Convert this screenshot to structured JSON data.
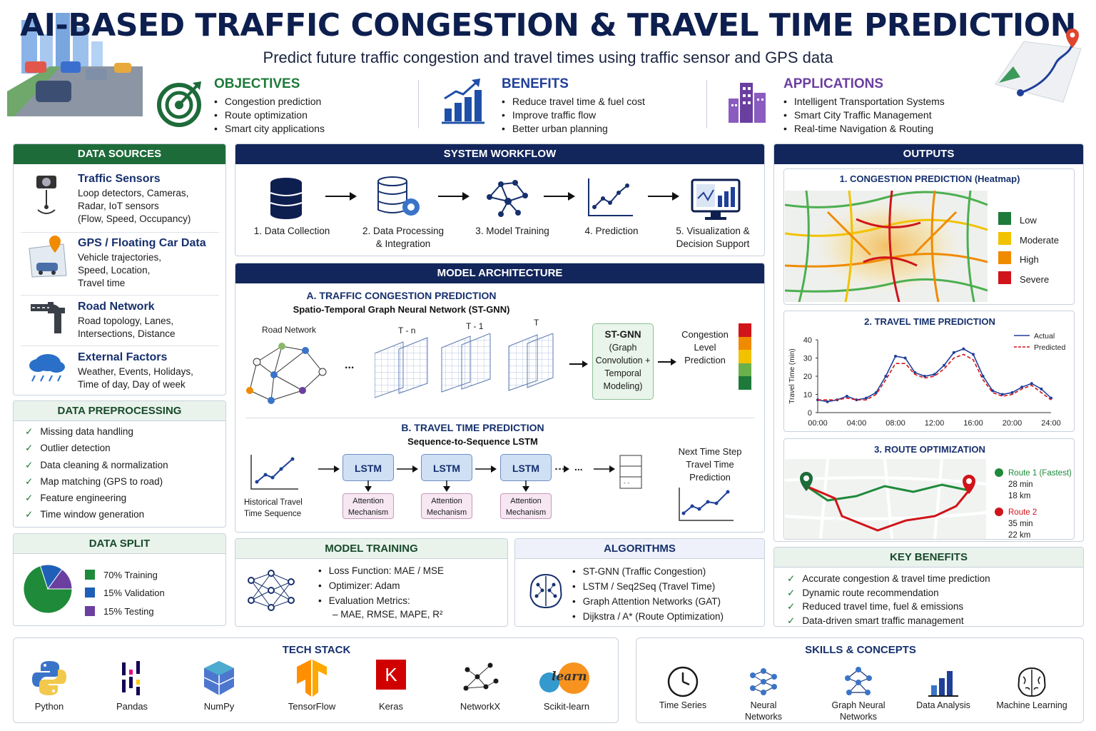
{
  "header": {
    "title": "AI-BASED TRAFFIC CONGESTION & TRAVEL TIME PREDICTION",
    "subtitle": "Predict future traffic congestion and travel times using traffic sensor and GPS data"
  },
  "objectives": {
    "heading": "OBJECTIVES",
    "items": [
      "Congestion prediction",
      "Route optimization",
      "Smart city applications"
    ],
    "color": "#1e7a3a"
  },
  "benefits": {
    "heading": "BENEFITS",
    "items": [
      "Reduce travel time & fuel cost",
      "Improve traffic flow",
      "Better urban planning"
    ],
    "color": "#1f3f99"
  },
  "applications": {
    "heading": "APPLICATIONS",
    "items": [
      "Intelligent Transportation Systems",
      "Smart City Traffic Management",
      "Real-time Navigation & Routing"
    ],
    "color": "#6b3fa0"
  },
  "data_sources": {
    "heading": "DATA SOURCES",
    "items": [
      {
        "title": "Traffic Sensors",
        "lines": [
          "Loop detectors, Cameras,",
          "Radar, IoT sensors",
          "(Flow, Speed, Occupancy)"
        ],
        "icon": "camera-icon"
      },
      {
        "title": "GPS / Floating Car Data",
        "lines": [
          "Vehicle trajectories,",
          "Speed, Location,",
          "Travel time"
        ],
        "icon": "gps-car-icon"
      },
      {
        "title": "Road Network",
        "lines": [
          "Road topology, Lanes,",
          "Intersections, Distance"
        ],
        "icon": "road-icon"
      },
      {
        "title": "External Factors",
        "lines": [
          "Weather, Events, Holidays,",
          "Time of day, Day of week"
        ],
        "icon": "weather-icon"
      }
    ]
  },
  "preprocessing": {
    "heading": "DATA PREPROCESSING",
    "items": [
      "Missing data handling",
      "Outlier detection",
      "Data cleaning & normalization",
      "Map matching (GPS to road)",
      "Feature engineering",
      "Time window generation"
    ]
  },
  "data_split": {
    "heading": "DATA SPLIT",
    "items": [
      {
        "label": "70% Training",
        "value": 70,
        "color": "#1e8a3a"
      },
      {
        "label": "15% Validation",
        "value": 15,
        "color": "#1f5fb8"
      },
      {
        "label": "15% Testing",
        "value": 15,
        "color": "#6b3fa0"
      }
    ]
  },
  "workflow": {
    "heading": "SYSTEM WORKFLOW",
    "steps": [
      {
        "label1": "1. Data Collection",
        "label2": ""
      },
      {
        "label1": "2. Data Processing",
        "label2": "& Integration"
      },
      {
        "label1": "3. Model Training",
        "label2": ""
      },
      {
        "label1": "4. Prediction",
        "label2": ""
      },
      {
        "label1": "5. Visualization &",
        "label2": "Decision Support"
      }
    ]
  },
  "architecture": {
    "heading": "MODEL ARCHITECTURE",
    "a_title": "A. TRAFFIC CONGESTION PREDICTION",
    "a_sub": "Spatio-Temporal Graph Neural Network (ST-GNN)",
    "road_network": "Road Network",
    "t_labels": [
      "T - n",
      "T - 1",
      "T"
    ],
    "dots": "...",
    "stgnn": [
      "ST-GNN",
      "(Graph",
      "Convolution +",
      "Temporal",
      "Modeling)"
    ],
    "congestion_out": [
      "Congestion",
      "Level",
      "Prediction"
    ],
    "b_title": "B. TRAVEL TIME PREDICTION",
    "b_sub": "Sequence-to-Sequence LSTM",
    "historical": [
      "Historical Travel",
      "Time Sequence"
    ],
    "lstm": "LSTM",
    "attention": [
      "Attention",
      "Mechanism"
    ],
    "next_step": [
      "Next Time Step",
      "Travel Time",
      "Prediction"
    ]
  },
  "training": {
    "heading": "MODEL TRAINING",
    "items": [
      "Loss Function: MAE / MSE",
      "Optimizer: Adam",
      "Evaluation Metrics:"
    ],
    "sub": "– MAE, RMSE, MAPE, R²"
  },
  "algorithms": {
    "heading": "ALGORITHMS",
    "items": [
      "ST-GNN (Traffic Congestion)",
      "LSTM / Seq2Seq (Travel Time)",
      "Graph Attention Networks (GAT)",
      "Dijkstra / A* (Route Optimization)"
    ]
  },
  "outputs": {
    "heading": "OUTPUTS",
    "congestion": {
      "title": "1. CONGESTION PREDICTION (Heatmap)",
      "legend": [
        {
          "label": "Low",
          "color": "#1e7a3a"
        },
        {
          "label": "Moderate",
          "color": "#f2c200"
        },
        {
          "label": "High",
          "color": "#f08a00"
        },
        {
          "label": "Severe",
          "color": "#d0141a"
        }
      ]
    },
    "travel_time": {
      "title": "2. TRAVEL TIME PREDICTION"
    },
    "route": {
      "title": "3. ROUTE OPTIMIZATION",
      "routes": [
        {
          "name": "Route 1 (Fastest)",
          "time": "28 min",
          "dist": "18 km",
          "color": "#1e8a3a"
        },
        {
          "name": "Route 2",
          "time": "35 min",
          "dist": "22 km",
          "color": "#d0141a"
        }
      ]
    }
  },
  "key_benefits": {
    "heading": "KEY BENEFITS",
    "items": [
      "Accurate congestion & travel time prediction",
      "Dynamic route recommendation",
      "Reduced travel time, fuel & emissions",
      "Data-driven smart traffic management"
    ]
  },
  "tech_stack": {
    "heading": "TECH STACK",
    "items": [
      {
        "label": "Python",
        "icon": "python-icon"
      },
      {
        "label": "Pandas",
        "icon": "pandas-icon"
      },
      {
        "label": "NumPy",
        "icon": "numpy-icon"
      },
      {
        "label": "TensorFlow",
        "icon": "tensorflow-icon"
      },
      {
        "label": "Keras",
        "icon": "keras-icon"
      },
      {
        "label": "NetworkX",
        "icon": "networkx-icon"
      },
      {
        "label": "Scikit-learn",
        "icon": "scikit-learn-icon"
      }
    ],
    "keras_letter": "K",
    "sklearn_text": "learn"
  },
  "skills": {
    "heading": "SKILLS & CONCEPTS",
    "items": [
      {
        "line1": "Time Series",
        "line2": "",
        "icon": "clock-icon"
      },
      {
        "line1": "Neural",
        "line2": "Networks",
        "icon": "neural-network-icon"
      },
      {
        "line1": "Graph Neural",
        "line2": "Networks",
        "icon": "graph-icon"
      },
      {
        "line1": "Data Analysis",
        "line2": "",
        "icon": "bar-chart-icon"
      },
      {
        "line1": "Machine Learning",
        "line2": "",
        "icon": "brain-icon"
      }
    ]
  },
  "chart_data": {
    "type": "line",
    "ylabel": "Travel Time (min)",
    "xlabel": "",
    "ylim": [
      0,
      40
    ],
    "yticks": [
      0,
      10,
      20,
      30,
      40
    ],
    "xticks": [
      "00:00",
      "04:00",
      "08:00",
      "12:00",
      "16:00",
      "20:00",
      "24:00"
    ],
    "legend_position": "top-right",
    "x": [
      0,
      1,
      2,
      3,
      4,
      5,
      6,
      7,
      8,
      9,
      10,
      11,
      12,
      13,
      14,
      15,
      16,
      17,
      18,
      19,
      20,
      21,
      22,
      23,
      24
    ],
    "series": [
      {
        "name": "Actual",
        "color": "#1f3f99",
        "dash": false,
        "values": [
          7,
          6,
          7,
          9,
          7,
          8,
          11,
          20,
          31,
          30,
          22,
          20,
          21,
          26,
          33,
          35,
          32,
          20,
          12,
          10,
          11,
          14,
          16,
          13,
          8
        ]
      },
      {
        "name": "Predicted",
        "color": "#d0141a",
        "dash": true,
        "values": [
          7,
          7,
          7,
          8,
          7,
          7,
          10,
          18,
          27,
          27,
          21,
          19,
          20,
          24,
          30,
          32,
          29,
          18,
          11,
          9,
          10,
          13,
          15,
          11,
          7
        ]
      }
    ]
  }
}
